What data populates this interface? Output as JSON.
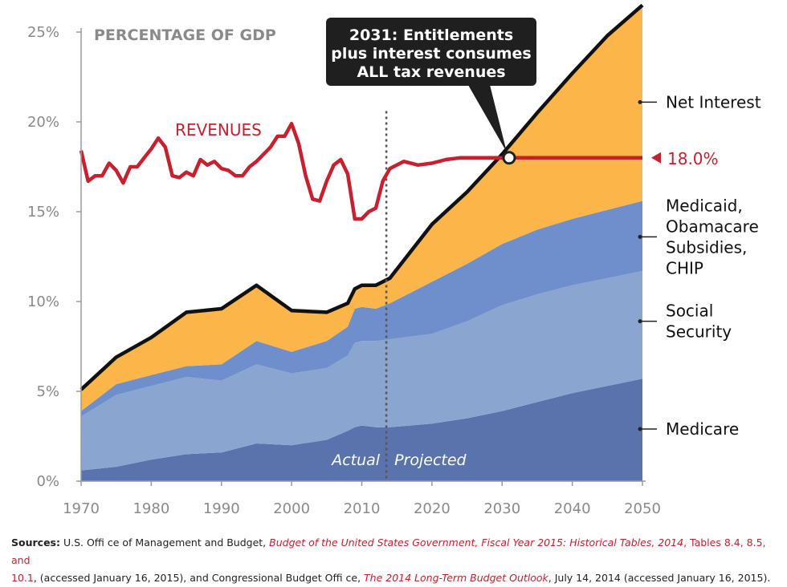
{
  "chart_data": {
    "type": "area",
    "title": "PERCENTAGE OF GDP",
    "x_ticks": [
      "1970",
      "1980",
      "1990",
      "2000",
      "2010",
      "2020",
      "2030",
      "2040",
      "2050"
    ],
    "y_ticks": [
      "0%",
      "5%",
      "10%",
      "15%",
      "20%",
      "25%"
    ],
    "xlim": [
      1970,
      2050
    ],
    "ylim": [
      0,
      25
    ],
    "grid": false,
    "stack_years": [
      1970,
      1975,
      1980,
      1985,
      1990,
      1995,
      2000,
      2005,
      2008,
      2009,
      2010,
      2012,
      2014,
      2020,
      2025,
      2030,
      2035,
      2040,
      2045,
      2050
    ],
    "series": [
      {
        "name": "Medicare",
        "color": "#5b73ad",
        "values": [
          0.6,
          0.8,
          1.2,
          1.5,
          1.6,
          2.1,
          2.0,
          2.3,
          2.8,
          3.0,
          3.1,
          3.0,
          3.0,
          3.2,
          3.5,
          3.9,
          4.4,
          4.9,
          5.3,
          5.7
        ]
      },
      {
        "name": "Social Security",
        "color": "#89a5d0",
        "values": [
          3.0,
          4.0,
          4.1,
          4.3,
          4.0,
          4.4,
          4.0,
          4.0,
          4.2,
          4.7,
          4.7,
          4.8,
          4.9,
          5.0,
          5.4,
          5.9,
          6.0,
          6.0,
          6.0,
          6.0
        ]
      },
      {
        "name": "Medicaid, Obamacare Subsidies, CHIP",
        "color": "#6f8fcc",
        "values": [
          0.3,
          0.6,
          0.6,
          0.6,
          0.9,
          1.3,
          1.2,
          1.5,
          1.6,
          1.9,
          1.9,
          1.8,
          2.0,
          2.9,
          3.2,
          3.4,
          3.6,
          3.7,
          3.8,
          3.9
        ]
      },
      {
        "name": "Net Interest",
        "color": "#fbb548",
        "values": [
          1.2,
          1.5,
          2.1,
          3.0,
          3.1,
          3.1,
          2.3,
          1.6,
          1.3,
          1.1,
          1.2,
          1.3,
          1.4,
          3.2,
          4.0,
          5.0,
          6.5,
          8.1,
          9.7,
          10.9
        ]
      }
    ],
    "total_line_color": "#111111",
    "revenues": {
      "name": "REVENUES",
      "color": "#c8202f",
      "years": [
        1970,
        1971,
        1972,
        1973,
        1974,
        1975,
        1976,
        1977,
        1978,
        1979,
        1980,
        1981,
        1982,
        1983,
        1984,
        1985,
        1986,
        1987,
        1988,
        1989,
        1990,
        1991,
        1992,
        1993,
        1994,
        1995,
        1996,
        1997,
        1998,
        1999,
        2000,
        2001,
        2002,
        2003,
        2004,
        2005,
        2006,
        2007,
        2008,
        2009,
        2010,
        2011,
        2012,
        2013,
        2014,
        2016,
        2018,
        2020,
        2022,
        2024,
        2030,
        2050
      ],
      "values": [
        18.4,
        16.7,
        17.0,
        17.0,
        17.7,
        17.3,
        16.6,
        17.5,
        17.5,
        18.0,
        18.5,
        19.1,
        18.6,
        17.0,
        16.9,
        17.2,
        17.0,
        17.9,
        17.6,
        17.8,
        17.4,
        17.3,
        17.0,
        17.0,
        17.5,
        17.8,
        18.2,
        18.6,
        19.2,
        19.2,
        19.9,
        18.8,
        17.0,
        15.7,
        15.6,
        16.7,
        17.6,
        17.9,
        17.1,
        14.6,
        14.6,
        15.0,
        15.2,
        16.7,
        17.4,
        17.8,
        17.6,
        17.7,
        17.9,
        18.0,
        18.0,
        18.0
      ]
    },
    "revenue_value_label": "18.0%",
    "actual_label": "Actual",
    "projected_label": "Projected",
    "divider_year": 2013.5,
    "callout": {
      "lines": [
        "2031: Entitlements",
        "plus interest consumes",
        "ALL tax revenues"
      ],
      "year": 2031,
      "value": 18.0
    },
    "legend_entries": [
      {
        "lines": [
          "Net Interest"
        ],
        "value": 21.1
      },
      {
        "lines": [
          "Medicaid,",
          "Obamacare",
          "Subsidies,",
          "CHIP"
        ],
        "value": 13.6
      },
      {
        "lines": [
          "Social",
          "Security"
        ],
        "value": 8.9
      },
      {
        "lines": [
          "Medicare"
        ],
        "value": 2.9
      }
    ]
  },
  "sources": {
    "label": "Sources:",
    "text1": " U.S. Offi ce of Management and Budget, ",
    "link1": "Budget of the United States Government, Fiscal Year 2015: Historical Tables, 2014",
    "text2": ", Tables 8.4, 8.5, and",
    "text3": "10.1",
    "text4": ", (accessed January 16, 2015), and Congressional Budget Offi ce, ",
    "link2": "The 2014 Long-Term Budget Outlook",
    "text5": ", July 14, 2014 (accessed January 16, 2015)."
  }
}
